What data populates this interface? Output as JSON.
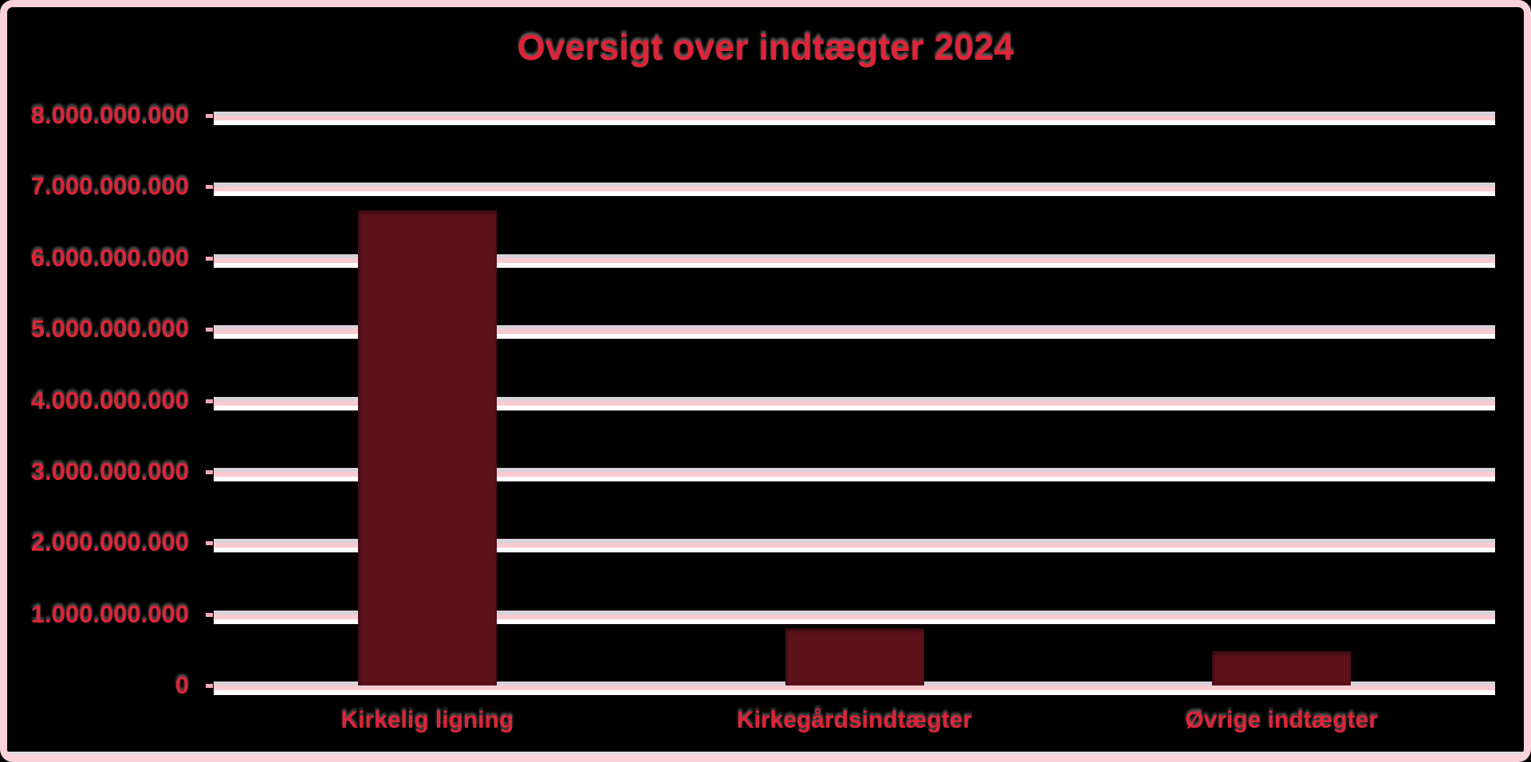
{
  "chart_data": {
    "type": "bar",
    "title": "Oversigt over indtægter 2024",
    "categories": [
      "Kirkelig ligning",
      "Kirkegårdsindtægter",
      "Øvrige indtægter"
    ],
    "values": [
      6670000000,
      805000000,
      480000000
    ],
    "xlabel": "",
    "ylabel": "",
    "ylim": [
      0,
      8000000000
    ],
    "y_tick_step": 1000000000,
    "y_tick_labels": [
      "0",
      "1.000.000.000",
      "2.000.000.000",
      "3.000.000.000",
      "4.000.000.000",
      "5.000.000.000",
      "6.000.000.000",
      "7.000.000.000",
      "8.000.000.000"
    ],
    "grid": true,
    "legend": false,
    "colors": {
      "background": "#000000",
      "frame_border": "#FBD1DA",
      "bar": "#5C121B",
      "text": "#DE2438",
      "grid_shadow_top": "#D8D2D9",
      "grid_pink": "#F8CAD1",
      "grid_highlight": "#FFFFFF",
      "tick_mark": "#F2A8B8",
      "floor_highlight": "#DFDBE0"
    }
  }
}
